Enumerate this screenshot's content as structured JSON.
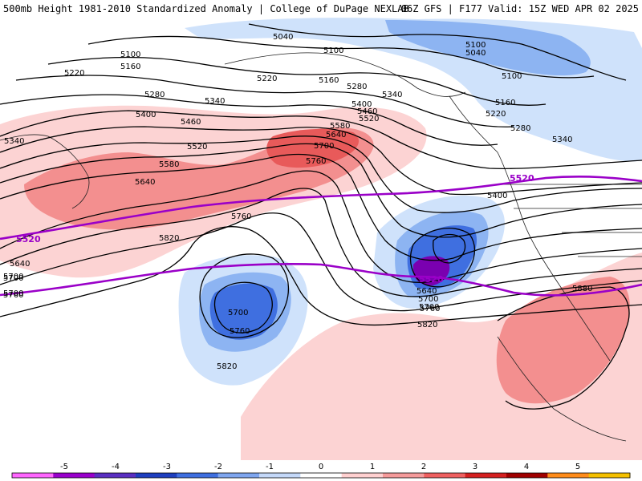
{
  "header": {
    "title_left": "500mb Height 1981-2010 Standardized Anomaly | College of DuPage NEXLAB",
    "title_right": "06Z GFS | F177 Valid: 15Z WED APR 02 2025"
  },
  "contour_labels": [
    "5040",
    "5100",
    "5100",
    "5160",
    "5220",
    "5220",
    "5160",
    "5280",
    "5280",
    "5340",
    "5340",
    "5400",
    "5340",
    "5460",
    "5520",
    "5460",
    "5400",
    "5580",
    "5520",
    "5640",
    "5580",
    "5700",
    "5640",
    "5760",
    "5700",
    "5760",
    "5820",
    "5640",
    "5700",
    "5760",
    "5880",
    "5100",
    "5040",
    "5100",
    "5160",
    "5220",
    "5280",
    "5340",
    "5400",
    "5700",
    "5760",
    "5820",
    "5640",
    "5700",
    "5760",
    "5820",
    "5700",
    "5760"
  ],
  "highlight_labels": [
    "5520",
    "5520",
    "5520"
  ],
  "colorbar": {
    "ticks": [
      "-5",
      "-4",
      "-3",
      "-2",
      "-1",
      "0",
      "1",
      "2",
      "3",
      "4",
      "5"
    ],
    "colors": [
      "#ff66ff",
      "#9900cc",
      "#5a2fc2",
      "#1f3fbf",
      "#3f6fe0",
      "#7fa6ef",
      "#c4d8f8",
      "#ffffff",
      "#ffd0d0",
      "#f59b9b",
      "#ef6060",
      "#d42020",
      "#a00000",
      "#ff8c1a",
      "#f5c000"
    ]
  },
  "colors": {
    "contour": "#000000",
    "highlight_contour": "#9a00c8",
    "neg_1": "#cfe2fb",
    "neg_2": "#8db4f2",
    "neg_3": "#3f6fe0",
    "neg_4": "#1f3fbf",
    "neg_5": "#7a00b0",
    "pos_1": "#fcd3d3",
    "pos_2": "#f38f8f",
    "pos_3": "#e85a5a"
  }
}
